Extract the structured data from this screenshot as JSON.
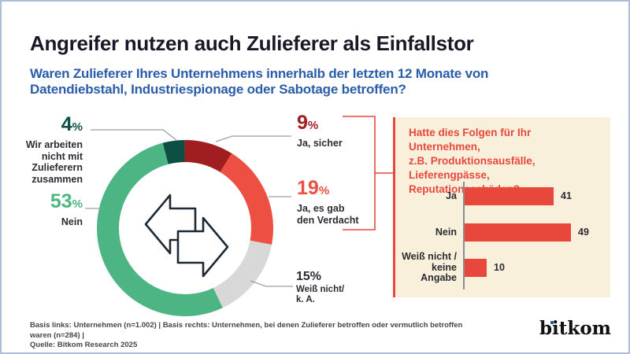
{
  "ui": {
    "percent_sign": "%"
  },
  "header": {
    "title": "Angreifer nutzen auch Zulieferer als Einfallstor",
    "subtitle_lines": [
      "Waren Zulieferer Ihres Unternehmens innerhalb der letzten 12 Monate von",
      "Datendiebstahl, Industriespionage oder Sabotage betroffen?"
    ]
  },
  "colors": {
    "accent_red": "#e8473c",
    "segment_dark_red": "#a01e1f",
    "segment_red": "#ee4f43",
    "segment_gray": "#d8d8d8",
    "segment_green": "#4db584",
    "segment_dark_teal": "#0d4f44",
    "subtitle_blue": "#2a5caa",
    "panel_beige": "#f9f0dc",
    "text_dark": "#2b2b33",
    "callout_line_gray": "#9aa0a5",
    "logo_dot_blue": "#2456a4",
    "page_border": "#abbfda"
  },
  "chart_data": [
    {
      "type": "pie",
      "subtype": "donut",
      "direction": "clockwise",
      "start": "top",
      "center_icon": "swap-arrows-icon",
      "segments": [
        {
          "label": "Ja, sicher",
          "value": 9,
          "color": "#a01e1f",
          "label_lines": [
            "Ja, sicher"
          ]
        },
        {
          "label": "Ja, es gab den Verdacht",
          "value": 19,
          "color": "#ee4f43",
          "label_lines": [
            "Ja, es gab",
            "den Verdacht"
          ]
        },
        {
          "label": "Weiß nicht/ k. A.",
          "value": 15,
          "color": "#d8d8d8",
          "label_lines": [
            "Weiß nicht/",
            "k. A."
          ]
        },
        {
          "label": "Nein",
          "value": 53,
          "color": "#4db584",
          "label_lines": [
            "Nein"
          ]
        },
        {
          "label": "Wir arbeiten nicht mit Zulieferern zusammen",
          "value": 4,
          "color": "#0d4f44",
          "label_lines": [
            "Wir arbeiten",
            "nicht mit",
            "Zulieferern",
            "zusammen"
          ]
        }
      ]
    },
    {
      "type": "bar",
      "orientation": "horizontal",
      "title": "Hatte dies Folgen für Ihr Unternehmen, z.B. Produktionsausfälle, Lieferengpässe, Reputationsschäden?",
      "title_lines": [
        "Hatte dies Folgen für Ihr Unternehmen,",
        "z.B. Produktionsausfälle, Lieferengpässe,",
        "Reputationsschäden?"
      ],
      "categories": [
        "Ja",
        "Nein",
        "Weiß nicht / keine Angabe"
      ],
      "values": [
        41,
        49,
        10
      ],
      "bar_color": "#e8473c"
    }
  ],
  "footer": {
    "basis_line": "Basis links: Unternehmen (n=1.002) | Basis rechts: Unternehmen, bei denen Zulieferer betroffen oder vermutlich betroffen waren (n=284) |",
    "source_line": "Quelle: Bitkom Research 2025",
    "logo_text": "bitkom"
  }
}
